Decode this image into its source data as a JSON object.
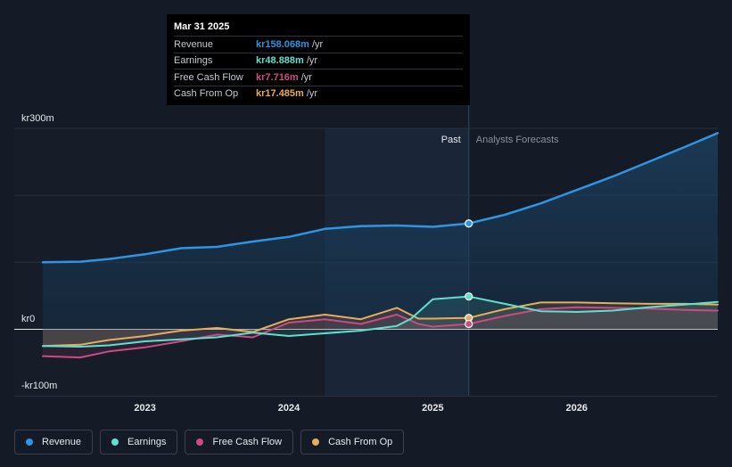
{
  "tooltip": {
    "date": "Mar 31 2025",
    "unit": "/yr",
    "rows": [
      {
        "label": "Revenue",
        "value": "kr158.068m"
      },
      {
        "label": "Earnings",
        "value": "kr48.888m"
      },
      {
        "label": "Free Cash Flow",
        "value": "kr7.716m"
      },
      {
        "label": "Cash From Op",
        "value": "kr17.485m"
      }
    ]
  },
  "colors": {
    "Revenue": "#2d95e3",
    "Earnings": "#5ee0cf",
    "Free Cash Flow": "#cc4b84",
    "Cash From Op": "#e7ac5c"
  },
  "legend": [
    "Revenue",
    "Earnings",
    "Free Cash Flow",
    "Cash From Op"
  ],
  "chart_data": {
    "type": "line",
    "title": "",
    "xlabel": "",
    "ylabel": "",
    "unit": "kr m /yr",
    "x_range": [
      2022.29,
      2026.98
    ],
    "ylim": [
      -100,
      300
    ],
    "y_tick_labels": [
      "kr300m",
      "kr0",
      "-kr100m"
    ],
    "y_ticks": [
      300,
      0,
      -100
    ],
    "x_tick_labels": [
      "2023",
      "2024",
      "2025",
      "2026"
    ],
    "x_ticks": [
      2023,
      2024,
      2025,
      2026
    ],
    "divider": 2025.25,
    "highlight_start": 2024.25,
    "past_label": "Past",
    "forecast_label": "Analysts Forecasts",
    "series": [
      {
        "name": "Revenue",
        "points": [
          [
            2022.29,
            100
          ],
          [
            2022.55,
            101
          ],
          [
            2022.75,
            105
          ],
          [
            2023.0,
            112
          ],
          [
            2023.25,
            121
          ],
          [
            2023.5,
            123
          ],
          [
            2023.75,
            131
          ],
          [
            2024.0,
            138
          ],
          [
            2024.25,
            150
          ],
          [
            2024.5,
            154
          ],
          [
            2024.75,
            155
          ],
          [
            2025.0,
            153
          ],
          [
            2025.25,
            158
          ],
          [
            2025.5,
            171
          ],
          [
            2025.75,
            188
          ],
          [
            2026.0,
            208
          ],
          [
            2026.25,
            228
          ],
          [
            2026.5,
            250
          ],
          [
            2026.75,
            272
          ],
          [
            2026.98,
            293
          ]
        ]
      },
      {
        "name": "Earnings",
        "points": [
          [
            2022.29,
            -25
          ],
          [
            2022.55,
            -26
          ],
          [
            2022.75,
            -24
          ],
          [
            2023.0,
            -18
          ],
          [
            2023.25,
            -15
          ],
          [
            2023.5,
            -12
          ],
          [
            2023.75,
            -5
          ],
          [
            2024.0,
            -10
          ],
          [
            2024.25,
            -6
          ],
          [
            2024.5,
            -2
          ],
          [
            2024.75,
            5
          ],
          [
            2024.85,
            16
          ],
          [
            2025.0,
            45
          ],
          [
            2025.25,
            49
          ],
          [
            2025.5,
            38
          ],
          [
            2025.75,
            27
          ],
          [
            2026.0,
            26
          ],
          [
            2026.25,
            28
          ],
          [
            2026.5,
            33
          ],
          [
            2026.75,
            37
          ],
          [
            2026.98,
            41
          ]
        ]
      },
      {
        "name": "Free Cash Flow",
        "points": [
          [
            2022.29,
            -40
          ],
          [
            2022.55,
            -42
          ],
          [
            2022.75,
            -33
          ],
          [
            2023.0,
            -27
          ],
          [
            2023.25,
            -18
          ],
          [
            2023.5,
            -8
          ],
          [
            2023.75,
            -12
          ],
          [
            2024.0,
            10
          ],
          [
            2024.25,
            15
          ],
          [
            2024.5,
            8
          ],
          [
            2024.75,
            22
          ],
          [
            2024.9,
            8
          ],
          [
            2025.0,
            4
          ],
          [
            2025.25,
            8
          ],
          [
            2025.5,
            20
          ],
          [
            2025.75,
            30
          ],
          [
            2026.0,
            33
          ],
          [
            2026.25,
            32
          ],
          [
            2026.5,
            31
          ],
          [
            2026.75,
            29
          ],
          [
            2026.98,
            28
          ]
        ]
      },
      {
        "name": "Cash From Op",
        "points": [
          [
            2022.29,
            -25
          ],
          [
            2022.55,
            -23
          ],
          [
            2022.75,
            -16
          ],
          [
            2023.0,
            -10
          ],
          [
            2023.25,
            -2
          ],
          [
            2023.5,
            2
          ],
          [
            2023.75,
            -4
          ],
          [
            2024.0,
            15
          ],
          [
            2024.25,
            22
          ],
          [
            2024.5,
            15
          ],
          [
            2024.75,
            32
          ],
          [
            2024.9,
            16
          ],
          [
            2025.0,
            16
          ],
          [
            2025.25,
            17
          ],
          [
            2025.5,
            30
          ],
          [
            2025.75,
            40
          ],
          [
            2026.0,
            40
          ],
          [
            2026.25,
            39
          ],
          [
            2026.5,
            38
          ],
          [
            2026.75,
            38
          ],
          [
            2026.98,
            37
          ]
        ]
      }
    ],
    "markers": [
      {
        "series": "Revenue",
        "x": 2025.25,
        "y": 158
      },
      {
        "series": "Earnings",
        "x": 2025.25,
        "y": 49
      },
      {
        "series": "Cash From Op",
        "x": 2025.25,
        "y": 17
      },
      {
        "series": "Free Cash Flow",
        "x": 2025.25,
        "y": 8
      }
    ]
  }
}
